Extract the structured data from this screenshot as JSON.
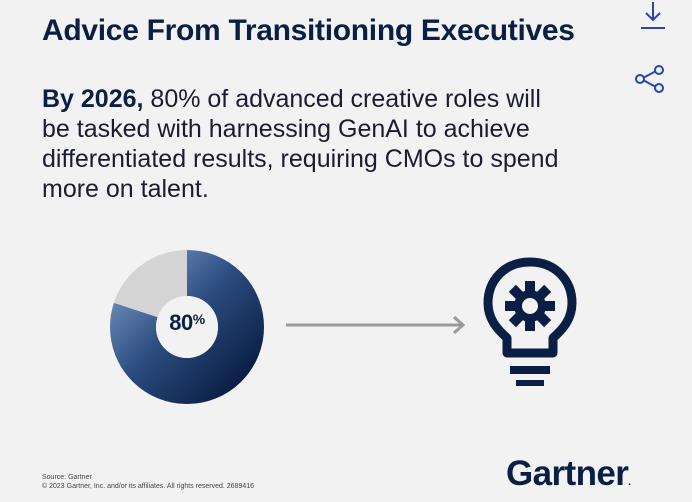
{
  "header": {
    "title": "Advice From Transitioning Executives"
  },
  "toolbar": {
    "download_icon": "download-icon",
    "share_icon": "share-icon",
    "accent_color": "#2b45a8"
  },
  "stat": {
    "lead": "By 2026,",
    "body": " 80% of advanced creative roles will be tasked with harnessing GenAI to achieve differentiated results, requiring CMOs to spend more on talent."
  },
  "donut": {
    "value": 80,
    "value_text": "80",
    "percent_symbol": "%",
    "colors": {
      "dark": "#0b1f45",
      "mid": "#4a6ea0",
      "rest": "#d4d4d4"
    }
  },
  "icons": {
    "arrow": "arrow-right-icon",
    "bulb": "lightbulb-gear-icon"
  },
  "footer": {
    "source": "Source: Gartner",
    "copyright": "© 2023 Gartner, Inc. and/or its affiliates. All rights reserved. 2689416"
  },
  "brand": {
    "name": "Gartner",
    "dot": ".",
    "color": "#0b1f45"
  }
}
